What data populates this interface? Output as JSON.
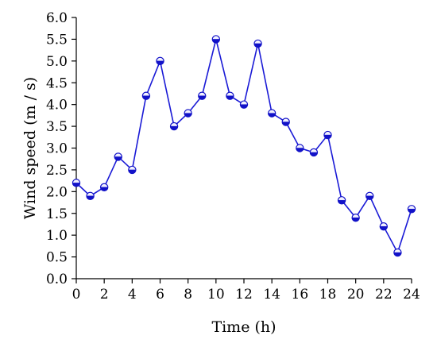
{
  "chart_data": {
    "type": "line",
    "title": "",
    "xlabel": "Time (h)",
    "ylabel": "Wind speed (m / s)",
    "xlim": [
      0,
      24
    ],
    "ylim": [
      0,
      6
    ],
    "x_ticks": [
      0,
      2,
      4,
      6,
      8,
      10,
      12,
      14,
      16,
      18,
      20,
      22,
      24
    ],
    "y_ticks": [
      "0.0",
      "0.5",
      "1.0",
      "1.5",
      "2.0",
      "2.5",
      "3.0",
      "3.5",
      "4.0",
      "4.5",
      "5.0",
      "5.5",
      "6.0"
    ],
    "grid": false,
    "legend": "none",
    "series": [
      {
        "color": "#1a1ad6",
        "marker_color": "#1212c8",
        "x": [
          0,
          1,
          2,
          3,
          4,
          5,
          6,
          7,
          8,
          9,
          10,
          11,
          12,
          13,
          14,
          15,
          16,
          17,
          18,
          19,
          20,
          21,
          22,
          23,
          24
        ],
        "values": [
          2.2,
          1.9,
          2.1,
          2.8,
          2.5,
          4.2,
          5.0,
          3.5,
          3.8,
          4.2,
          5.5,
          4.2,
          4.0,
          5.4,
          3.8,
          3.6,
          3.0,
          2.9,
          3.3,
          1.8,
          1.4,
          1.9,
          1.2,
          0.6,
          1.6
        ]
      }
    ]
  }
}
